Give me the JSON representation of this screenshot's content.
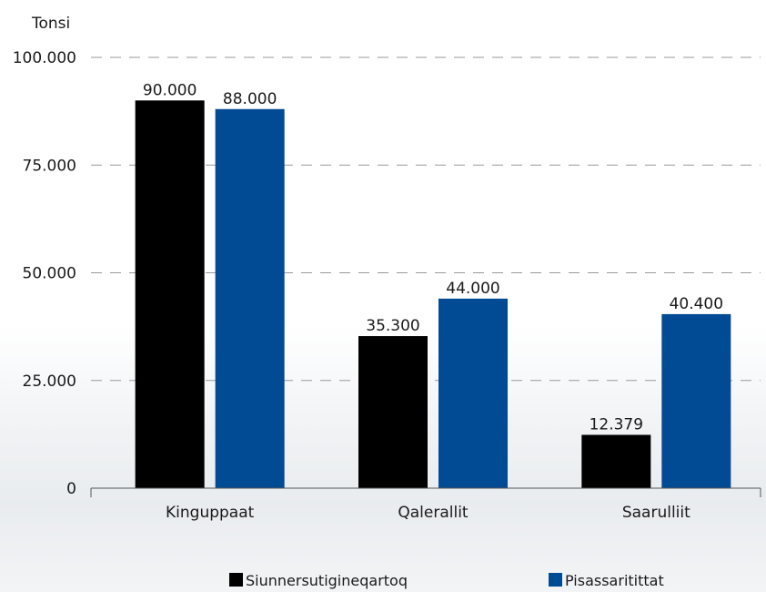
{
  "chart_data": {
    "type": "bar",
    "ylabel": "Tonsi",
    "categories": [
      "Kinguppaat",
      "Qalerallit",
      "Saarulliit"
    ],
    "series": [
      {
        "name": "Siunnersutigineqartoq",
        "color": "#000000",
        "values": [
          90000,
          35300,
          12379
        ],
        "labels": [
          "90.000",
          "35.300",
          "12.379"
        ]
      },
      {
        "name": "Pisassaritittat",
        "color": "#004b93",
        "values": [
          88000,
          44000,
          40400
        ],
        "labels": [
          "88.000",
          "44.000",
          "40.400"
        ]
      }
    ],
    "ylim": [
      0,
      100000
    ],
    "yticks": [
      0,
      25000,
      50000,
      75000,
      100000
    ],
    "ytick_labels": [
      "0",
      "25.000",
      "50.000",
      "75.000",
      "100.000"
    ],
    "grid": true,
    "legend_position": "bottom"
  }
}
